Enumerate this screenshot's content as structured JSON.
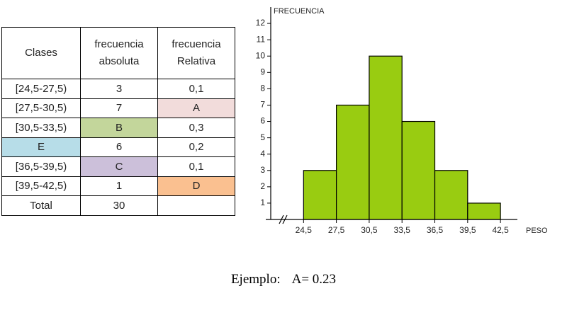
{
  "table": {
    "header": [
      "Clases",
      "frecuencia absoluta",
      "frecuencia Relativa"
    ],
    "rows": [
      [
        "[24,5-27,5)",
        "3",
        "0,1"
      ],
      [
        "[27,5-30,5)",
        "7",
        "A"
      ],
      [
        "[30,5-33,5)",
        "B",
        "0,3"
      ],
      [
        "E",
        "6",
        "0,2"
      ],
      [
        "[36,5-39,5)",
        "C",
        "0,1"
      ],
      [
        "[39,5-42,5)",
        "1",
        "D"
      ],
      [
        "Total",
        "30",
        ""
      ]
    ]
  },
  "chart_data": {
    "type": "histogram",
    "ylabel": "FRECUENCIA",
    "xlabel": "PESO",
    "bins": [
      24.5,
      27.5,
      30.5,
      33.5,
      36.5,
      39.5,
      42.5
    ],
    "values": [
      3,
      7,
      10,
      6,
      3,
      1
    ],
    "color": "#99cc11",
    "xlim": [
      21.5,
      44.5
    ],
    "ylim": [
      0,
      13
    ],
    "xticks": [
      {
        "value": 24.5,
        "label": "24,5"
      },
      {
        "value": 27.5,
        "label": "27,5"
      },
      {
        "value": 30.5,
        "label": "30,5"
      },
      {
        "value": 33.5,
        "label": "33,5"
      },
      {
        "value": 36.5,
        "label": "36,5"
      },
      {
        "value": 39.5,
        "label": "39,5"
      },
      {
        "value": 42.5,
        "label": "42,5"
      }
    ],
    "yticks": [
      1,
      2,
      3,
      4,
      5,
      6,
      7,
      8,
      9,
      10,
      11,
      12
    ]
  },
  "caption": {
    "lead": "Ejemplo:",
    "text": "A= 0.23"
  }
}
